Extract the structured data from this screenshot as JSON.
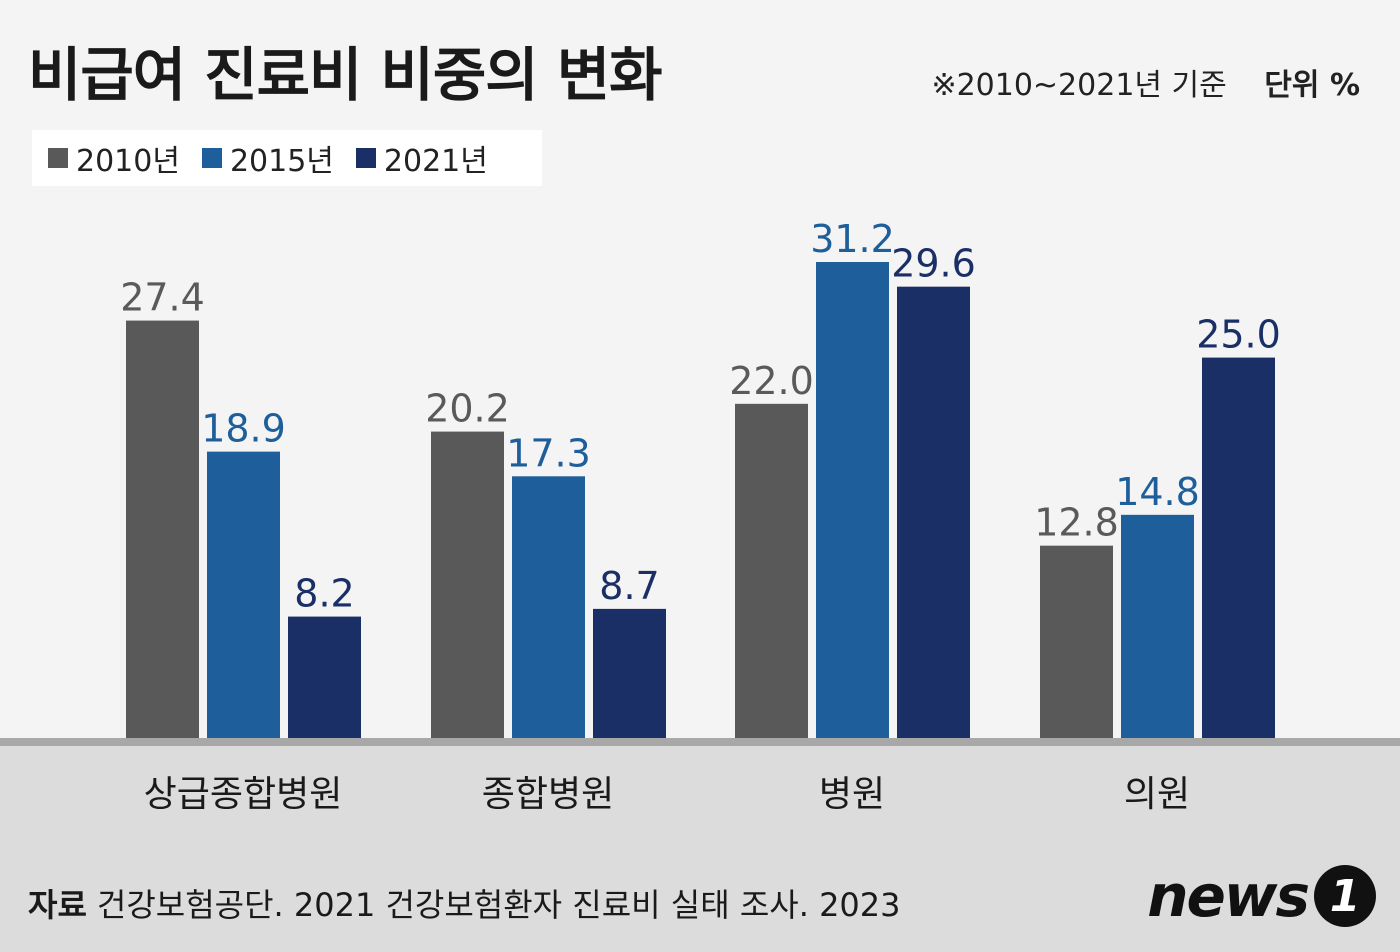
{
  "header": {
    "title": "비급여 진료비 비중의 변화",
    "note": "※2010~2021년 기준",
    "unit": "단위 %"
  },
  "legend": [
    {
      "label": "2010년",
      "color": "#595959"
    },
    {
      "label": "2015년",
      "color": "#1e5e9a"
    },
    {
      "label": "2021년",
      "color": "#1a2f66"
    }
  ],
  "chart_data": {
    "type": "bar",
    "categories": [
      "상급종합병원",
      "종합병원",
      "병원",
      "의원"
    ],
    "series": [
      {
        "name": "2010년",
        "values": [
          27.4,
          20.2,
          22.0,
          12.8
        ],
        "labels": [
          "27.4",
          "20.2",
          "22.0",
          "12.8"
        ],
        "color": "#595959",
        "label_color": "#5a5a5a"
      },
      {
        "name": "2015년",
        "values": [
          18.9,
          17.3,
          31.2,
          14.8
        ],
        "labels": [
          "18.9",
          "17.3",
          "31.2",
          "14.8"
        ],
        "color": "#1e5e9a",
        "label_color": "#1e5e9a"
      },
      {
        "name": "2021년",
        "values": [
          8.2,
          8.7,
          29.6,
          25.0
        ],
        "labels": [
          "8.2",
          "8.7",
          "29.6",
          "25.0"
        ],
        "color": "#1a2f66",
        "label_color": "#1a2f66"
      }
    ],
    "ylim": [
      0,
      31.2
    ]
  },
  "footer": {
    "source_label": "자료",
    "source_text": "건강보험공단. 2021 건강보험환자 진료비 실태 조사. 2023",
    "logo_text": "news",
    "logo_badge": "1"
  }
}
